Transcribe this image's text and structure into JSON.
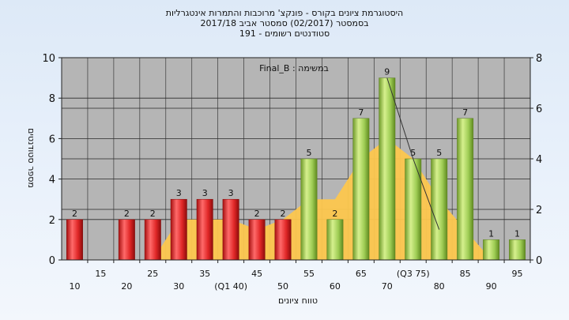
{
  "title_lines": [
    "היסטוגרמת ציונים בקורס - פונקצ' מרוכבות והתמרות אינטגרליות",
    "בסמסטר  (02/2017)  סמסטר אביב 2017/18",
    "סטודנטים רשומים - 191"
  ],
  "chart_data": {
    "type": "bar",
    "annotation": "Final_B : במשימה",
    "xlabel": "טווח ציונים",
    "ylabel": "מספר סטודנטים",
    "ylim": [
      0,
      10
    ],
    "yticks": [
      0,
      2,
      4,
      6,
      8,
      10
    ],
    "y2lim": [
      0,
      8
    ],
    "y2ticks": [
      0,
      2,
      4,
      6,
      8
    ],
    "grid": true,
    "categories": [
      "10",
      "15",
      "20",
      "25",
      "30",
      "35",
      "(Q1 40)",
      "45",
      "50",
      "55",
      "60",
      "65",
      "70",
      "(Q3 75)",
      "80",
      "85",
      "90",
      "95"
    ],
    "values": [
      2,
      0,
      2,
      2,
      3,
      3,
      3,
      2,
      2,
      5,
      2,
      7,
      9,
      5,
      5,
      7,
      1,
      1
    ],
    "bar_colors": [
      "#e23a3a",
      "#e23a3a",
      "#e23a3a",
      "#e23a3a",
      "#e23a3a",
      "#e23a3a",
      "#e23a3a",
      "#e23a3a",
      "#e23a3a",
      "#9fcd55",
      "#9fcd55",
      "#9fcd55",
      "#9fcd55",
      "#9fcd55",
      "#9fcd55",
      "#9fcd55",
      "#9fcd55",
      "#9fcd55"
    ],
    "area_values": [
      0,
      0,
      0,
      0,
      2,
      2,
      2,
      1.5,
      2,
      3,
      3,
      5,
      6,
      5,
      3,
      1.5,
      0,
      0
    ],
    "area_color": "#fdc74e",
    "line_series": {
      "from_index": 12,
      "values": [
        9,
        5,
        1.5
      ]
    },
    "plot_bg": "#b5b5b5"
  }
}
